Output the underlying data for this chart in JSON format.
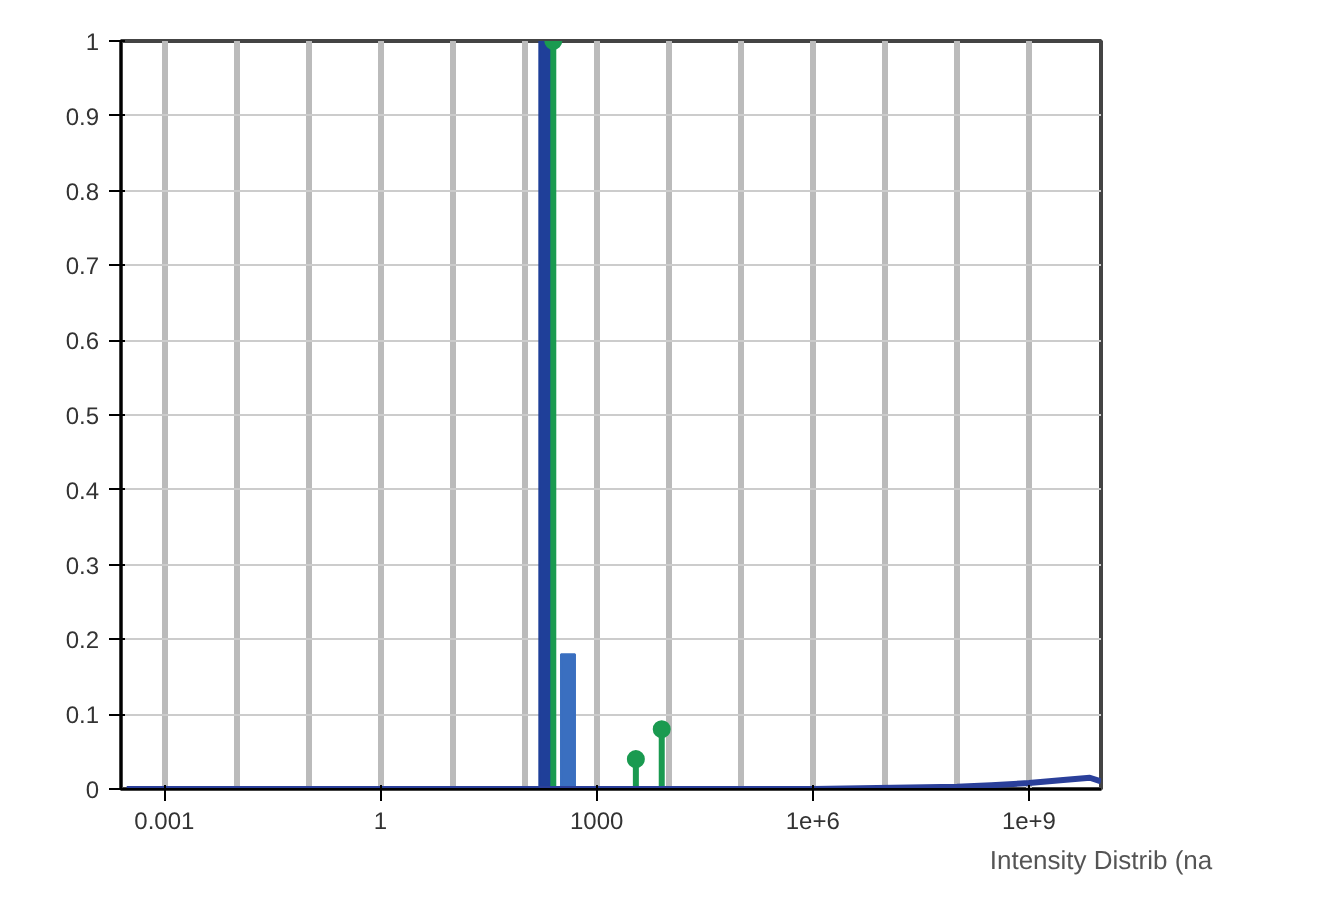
{
  "chart_data": {
    "type": "bar",
    "xlabel": "Intensity Distrib (na",
    "log": "x",
    "grid": true,
    "xlim": [
      0.00025,
      10000000000
    ],
    "ylim": [
      0,
      1
    ],
    "xticks": [
      0.001,
      1,
      1000,
      {
        "value": 1000000,
        "label": "1e+6"
      },
      {
        "value": 1000000000,
        "label": "1e+9"
      }
    ],
    "yticks": [
      0,
      0.1,
      0.2,
      0.3,
      0.4,
      0.5,
      0.6,
      0.7,
      0.8,
      0.9,
      1
    ],
    "series": [
      {
        "x": [
          200,
          400
        ],
        "values": [
          1,
          0.18
        ],
        "colors": [
          "#1f3f99",
          "#3a6fc0"
        ]
      },
      {
        "type": "lollipop",
        "x": [
          250,
          3500,
          8000
        ],
        "values": [
          1,
          0.04,
          0.08
        ],
        "color": "#1a9a50"
      },
      {
        "type": "line",
        "x": [
          0.0003,
          0.01,
          1,
          100,
          10000,
          1000000,
          100000000,
          300000000,
          1000000000,
          3000000000,
          7000000000,
          10000000000
        ],
        "values": [
          0,
          0,
          0,
          0,
          0,
          0,
          0.003,
          0.005,
          0.008,
          0.012,
          0.015,
          0.01
        ],
        "color": "#2a3f9a"
      }
    ]
  }
}
